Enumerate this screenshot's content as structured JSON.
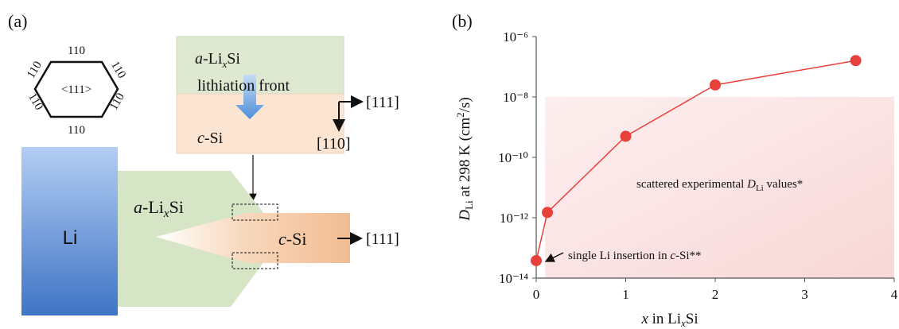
{
  "panel_a": {
    "label": "(a)",
    "hexagon": {
      "labels": [
        "110",
        "110",
        "110",
        "110",
        "110",
        "110"
      ],
      "center": "<111>"
    },
    "inset": {
      "top": [
        "a",
        "-Li",
        "x",
        "Si"
      ],
      "front": "lithiation front",
      "bottom": [
        "c",
        "-Si"
      ],
      "dir1": "[111]",
      "dir2": "[110]"
    },
    "li": "Li",
    "amorphous": [
      "a",
      "-Li",
      "x",
      "Si"
    ],
    "crystal": [
      "c",
      "-Si"
    ],
    "direction": "[111]"
  },
  "chart_data": {
    "type": "line",
    "label": "(b)",
    "x": [
      0,
      0.125,
      1,
      2,
      3.57
    ],
    "values": [
      3.8e-14,
      1.5e-12,
      5e-10,
      2.5e-08,
      1.6e-07
    ],
    "color": "#e8413c",
    "ylog": true,
    "xlim": [
      0,
      4
    ],
    "ylim": [
      1e-14,
      1e-06
    ],
    "xticks": [
      0,
      1,
      2,
      3,
      4
    ],
    "yticks": [
      {
        "value": 1e-14,
        "label": "10⁻¹⁴"
      },
      {
        "value": 1e-12,
        "label": "10⁻¹²"
      },
      {
        "value": 1e-10,
        "label": "10⁻¹⁰"
      },
      {
        "value": 1e-08,
        "label": "10⁻⁸"
      },
      {
        "value": 1e-06,
        "label": "10⁻⁶"
      }
    ],
    "xlabel": [
      "x",
      " in Li",
      "x",
      "Si"
    ],
    "ylabel": [
      "D",
      "Li",
      " at 298 K (cm",
      "2",
      "/s)"
    ],
    "experimental_range": {
      "xlim": [
        0.1,
        4
      ],
      "ylim": [
        1e-14,
        1e-08
      ]
    },
    "annotations": {
      "experimental": [
        "scattered experimental ",
        "D",
        "Li",
        " values*"
      ],
      "single": [
        "single Li insertion in ",
        "c",
        "-Si**"
      ]
    }
  }
}
